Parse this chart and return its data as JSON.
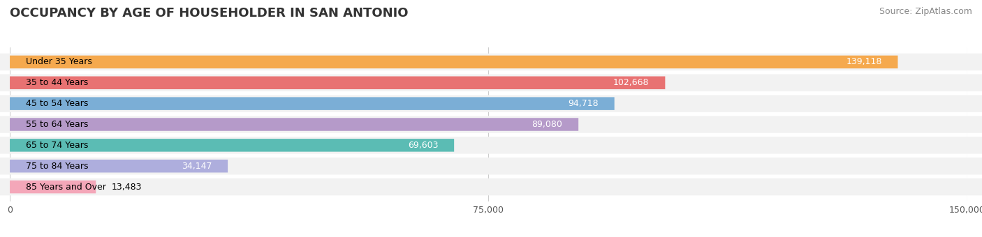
{
  "title": "OCCUPANCY BY AGE OF HOUSEHOLDER IN SAN ANTONIO",
  "source": "Source: ZipAtlas.com",
  "categories": [
    "Under 35 Years",
    "35 to 44 Years",
    "45 to 54 Years",
    "55 to 64 Years",
    "65 to 74 Years",
    "75 to 84 Years",
    "85 Years and Over"
  ],
  "values": [
    139118,
    102668,
    94718,
    89080,
    69603,
    34147,
    13483
  ],
  "bar_colors": [
    "#F5A94E",
    "#E87272",
    "#7BAED6",
    "#B59AC9",
    "#5BBCB4",
    "#AEAEDD",
    "#F4A7B9"
  ],
  "xlim": [
    0,
    150000
  ],
  "xticks": [
    0,
    75000,
    150000
  ],
  "xticklabels": [
    "0",
    "75,000",
    "150,000"
  ],
  "title_fontsize": 13,
  "source_fontsize": 9,
  "label_fontsize": 9,
  "value_fontsize": 9,
  "background_color": "#FFFFFF",
  "bar_height": 0.62,
  "row_bg_color": "#F2F2F2"
}
